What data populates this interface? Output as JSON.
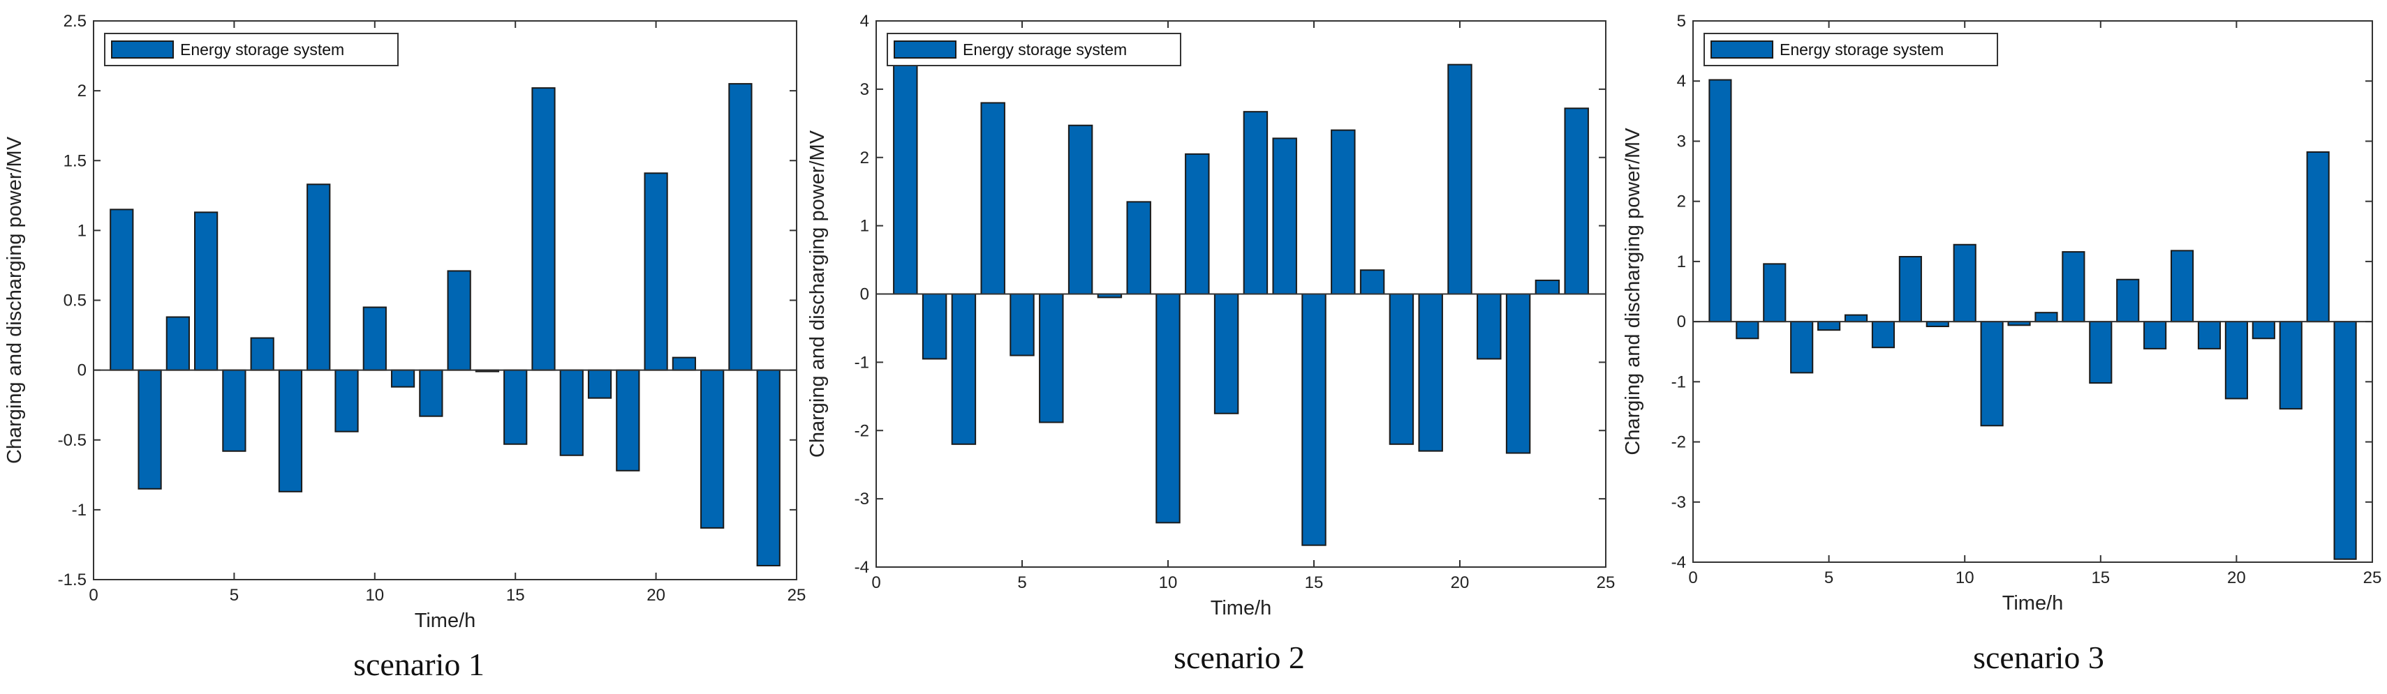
{
  "chart_data": [
    {
      "type": "bar",
      "caption": "scenario 1",
      "xlabel": "Time/h",
      "ylabel": "Charging and discharging power/MV",
      "legend": "Energy storage system",
      "legend_position": "top-left",
      "xlim": [
        0,
        25
      ],
      "ylim": [
        -1.5,
        2.5
      ],
      "xticks": [
        0,
        5,
        10,
        15,
        20,
        25
      ],
      "yticks": [
        -1.5,
        -1,
        -0.5,
        0,
        0.5,
        1,
        1.5,
        2,
        2.5
      ],
      "grid": false,
      "color": "#0066b3",
      "categories": [
        1,
        2,
        3,
        4,
        5,
        6,
        7,
        8,
        9,
        10,
        11,
        12,
        13,
        14,
        15,
        16,
        17,
        18,
        19,
        20,
        21,
        22,
        23,
        24
      ],
      "values": [
        1.15,
        -0.85,
        0.38,
        1.13,
        -0.58,
        0.23,
        -0.87,
        1.33,
        -0.44,
        0.45,
        -0.12,
        -0.33,
        0.71,
        -0.01,
        -0.53,
        2.02,
        -0.61,
        -0.2,
        -0.72,
        1.41,
        0.09,
        -1.13,
        2.05,
        -1.4
      ]
    },
    {
      "type": "bar",
      "caption": "scenario 2",
      "xlabel": "Time/h",
      "ylabel": "Charging and discharging power/MV",
      "legend": "Energy storage system",
      "legend_position": "top-left",
      "xlim": [
        0,
        25
      ],
      "ylim": [
        -4,
        4
      ],
      "xticks": [
        0,
        5,
        10,
        15,
        20,
        25
      ],
      "yticks": [
        -4,
        -3,
        -2,
        -1,
        0,
        1,
        2,
        3,
        4
      ],
      "grid": false,
      "color": "#0066b3",
      "categories": [
        1,
        2,
        3,
        4,
        5,
        6,
        7,
        8,
        9,
        10,
        11,
        12,
        13,
        14,
        15,
        16,
        17,
        18,
        19,
        20,
        21,
        22,
        23,
        24
      ],
      "values": [
        3.7,
        -0.95,
        -2.2,
        2.8,
        -0.9,
        -1.88,
        2.47,
        -0.05,
        1.35,
        -3.35,
        2.05,
        -1.75,
        2.67,
        2.28,
        -3.68,
        2.4,
        0.35,
        -2.2,
        -2.3,
        3.36,
        -0.95,
        -2.33,
        0.2,
        2.72
      ]
    },
    {
      "type": "bar",
      "caption": "scenario 3",
      "xlabel": "Time/h",
      "ylabel": "Charging and discharging power/MV",
      "legend": "Energy storage system",
      "legend_position": "top-left",
      "xlim": [
        0,
        25
      ],
      "ylim": [
        -4,
        5
      ],
      "xticks": [
        0,
        5,
        10,
        15,
        20,
        25
      ],
      "yticks": [
        -4,
        -3,
        -2,
        -1,
        0,
        1,
        2,
        3,
        4,
        5
      ],
      "grid": false,
      "color": "#0066b3",
      "categories": [
        1,
        2,
        3,
        4,
        5,
        6,
        7,
        8,
        9,
        10,
        11,
        12,
        13,
        14,
        15,
        16,
        17,
        18,
        19,
        20,
        21,
        22,
        23,
        24
      ],
      "values": [
        4.02,
        -0.28,
        0.96,
        -0.85,
        -0.14,
        0.11,
        -0.43,
        1.08,
        -0.08,
        1.28,
        -1.73,
        -0.06,
        0.15,
        1.16,
        -1.02,
        0.7,
        -0.45,
        1.18,
        -0.45,
        -1.28,
        -0.28,
        -1.45,
        2.82,
        -3.95
      ]
    }
  ]
}
